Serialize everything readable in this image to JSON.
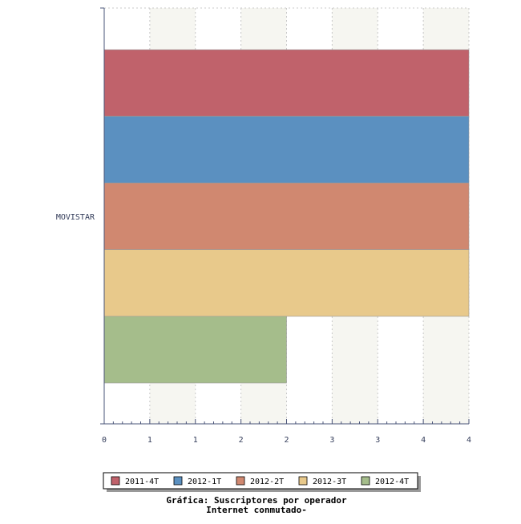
{
  "chart_data": {
    "type": "bar",
    "orientation": "horizontal",
    "categories": [
      "MOVISTAR"
    ],
    "series": [
      {
        "name": "2011-4T",
        "values": [
          4
        ],
        "color": "#c0626b"
      },
      {
        "name": "2012-1T",
        "values": [
          4
        ],
        "color": "#5b90c0"
      },
      {
        "name": "2012-2T",
        "values": [
          4
        ],
        "color": "#d08870"
      },
      {
        "name": "2012-3T",
        "values": [
          4
        ],
        "color": "#e8c98b"
      },
      {
        "name": "2012-4T",
        "values": [
          2
        ],
        "color": "#a5bd8b"
      }
    ],
    "xlim": [
      0,
      4
    ],
    "x_tick_labels": [
      "0",
      "1",
      "1",
      "2",
      "2",
      "3",
      "3",
      "4",
      "4"
    ],
    "grid": true,
    "legend": "bottom",
    "title": "Gráfica: Suscriptores por operador",
    "subtitle": "Internet conmutado-"
  }
}
